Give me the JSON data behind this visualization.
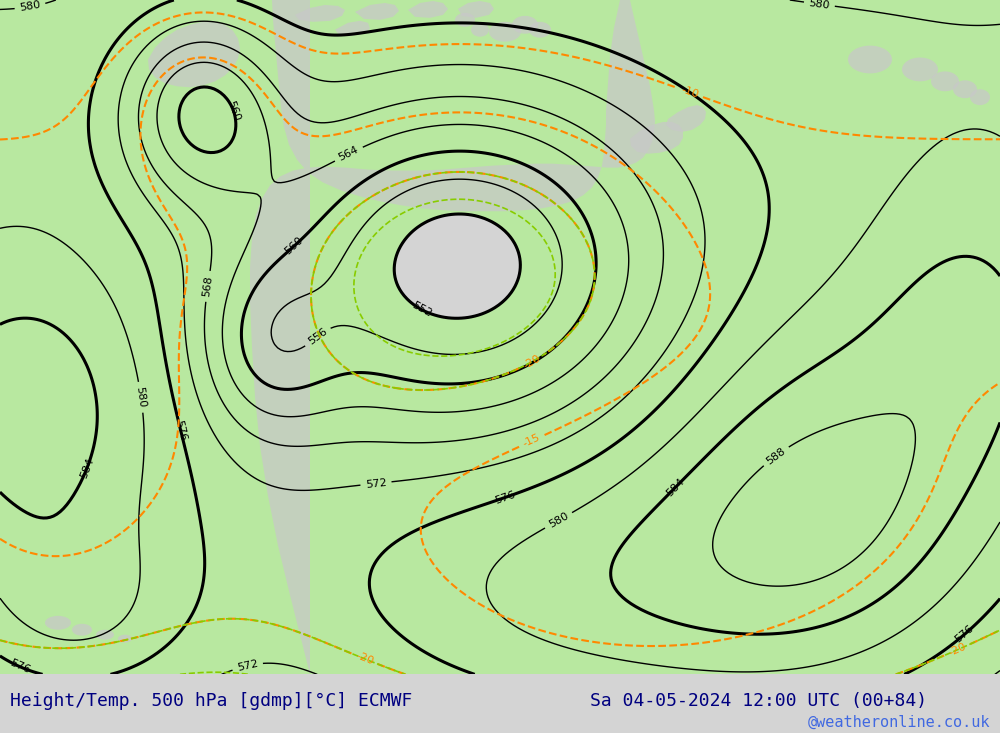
{
  "title_left": "Height/Temp. 500 hPa [gdmp][°C] ECMWF",
  "title_right": "Sa 04-05-2024 12:00 UTC (00+84)",
  "watermark": "@weatheronline.co.uk",
  "background_color": "#d4d4d4",
  "land_color": "#c8c8c8",
  "green_area_color": "#b8e8a0",
  "title_color": "#000080",
  "watermark_color": "#4169e1",
  "title_fontsize": 13,
  "watermark_fontsize": 11
}
